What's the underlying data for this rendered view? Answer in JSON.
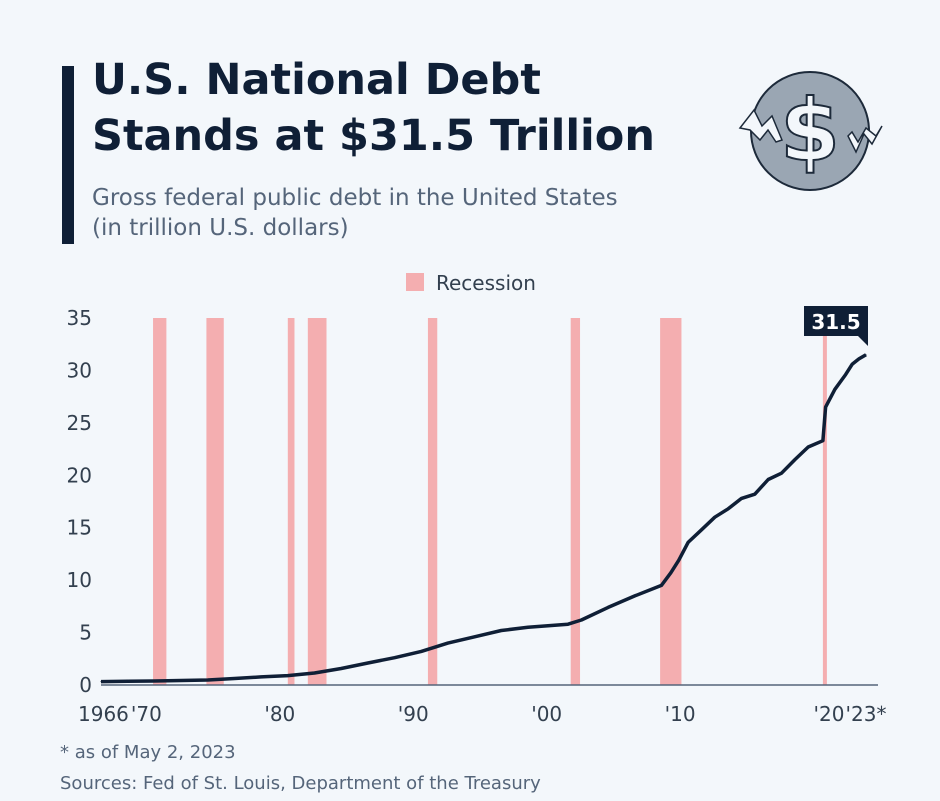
{
  "title_line1": "U.S. National Debt",
  "title_line2": "Stands at $31.5 Trillion",
  "subtitle_line1": "Gross federal public debt in the United States",
  "subtitle_line2": "(in trillion U.S. dollars)",
  "footnote": "* as of May 2, 2023",
  "sources": "Sources: Fed of St. Louis, Department of the Treasury",
  "icon": "dollar-coin-icon",
  "colors": {
    "line": "#0f1f36",
    "recession": "#f4aeb0",
    "text": "#0f1f36",
    "muted": "#55657a",
    "background": "#f3f7fb"
  },
  "chart_data": {
    "type": "line",
    "ylim": [
      0,
      35
    ],
    "xlim": [
      1966,
      2023.33
    ],
    "yticks": [
      0,
      5,
      10,
      15,
      20,
      25,
      30,
      35
    ],
    "xticks": [
      {
        "value": 1966,
        "label": "1966"
      },
      {
        "value": 1970,
        "label": "'70"
      },
      {
        "value": 1980,
        "label": "'80"
      },
      {
        "value": 1990,
        "label": "'90"
      },
      {
        "value": 2000,
        "label": "'00"
      },
      {
        "value": 2010,
        "label": "'10"
      },
      {
        "value": 2020,
        "label": "'20"
      },
      {
        "value": 2023.33,
        "label": "'23*"
      }
    ],
    "legend": {
      "label": "Recession",
      "placement": "top-center"
    },
    "recessions": [
      [
        1969.9,
        1970.9
      ],
      [
        1973.9,
        1975.2
      ],
      [
        1980.0,
        1980.5
      ],
      [
        1981.5,
        1982.9
      ],
      [
        1990.5,
        1991.2
      ],
      [
        2001.2,
        2001.9
      ],
      [
        2007.9,
        2009.5
      ],
      [
        2020.1,
        2020.4
      ]
    ],
    "annotation": "31.5",
    "x": [
      1966,
      1968,
      1970,
      1972,
      1974,
      1976,
      1978,
      1980,
      1982,
      1984,
      1986,
      1988,
      1990,
      1992,
      1994,
      1996,
      1998,
      2000,
      2001,
      2002,
      2004,
      2006,
      2008,
      2008.7,
      2009.3,
      2010,
      2011,
      2012,
      2013,
      2014,
      2015,
      2016,
      2017,
      2018,
      2019,
      2020.1,
      2020.3,
      2021,
      2021.8,
      2022.3,
      2022.8,
      2023.33
    ],
    "y": [
      0.32,
      0.35,
      0.38,
      0.43,
      0.48,
      0.62,
      0.77,
      0.9,
      1.14,
      1.57,
      2.1,
      2.6,
      3.2,
      4.0,
      4.6,
      5.2,
      5.5,
      5.7,
      5.8,
      6.2,
      7.4,
      8.5,
      9.5,
      10.7,
      11.9,
      13.6,
      14.8,
      16.0,
      16.8,
      17.8,
      18.2,
      19.6,
      20.2,
      21.5,
      22.7,
      23.3,
      26.5,
      28.2,
      29.6,
      30.6,
      31.1,
      31.5
    ]
  }
}
